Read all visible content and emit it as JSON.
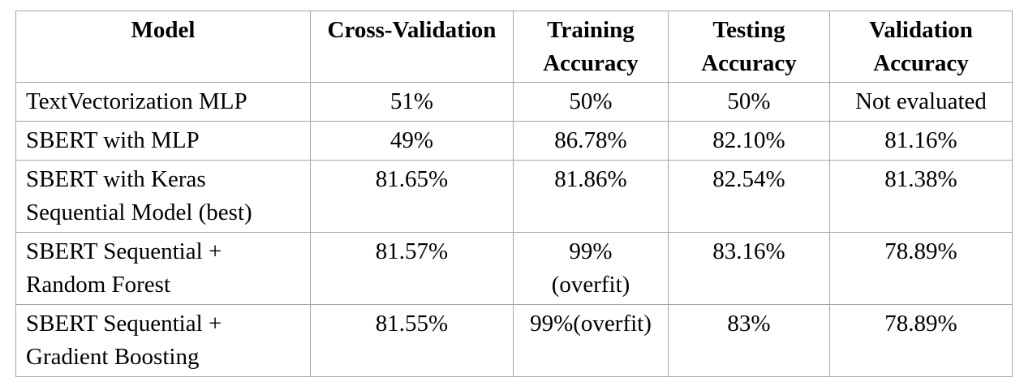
{
  "table": {
    "headers": [
      [
        "Model"
      ],
      [
        "Cross-Validation"
      ],
      [
        "Training",
        "Accuracy"
      ],
      [
        "Testing",
        "Accuracy"
      ],
      [
        "Validation",
        "Accuracy"
      ]
    ],
    "rows": [
      {
        "model": [
          "TextVectorization MLP"
        ],
        "cross_validation": [
          "51%"
        ],
        "training_accuracy": [
          "50%"
        ],
        "testing_accuracy": [
          "50%"
        ],
        "validation_accuracy": [
          "Not evaluated"
        ]
      },
      {
        "model": [
          "SBERT with MLP"
        ],
        "cross_validation": [
          "49%"
        ],
        "training_accuracy": [
          "86.78%"
        ],
        "testing_accuracy": [
          "82.10%"
        ],
        "validation_accuracy": [
          "81.16%"
        ]
      },
      {
        "model": [
          "SBERT with Keras",
          "Sequential Model (best)"
        ],
        "cross_validation": [
          "81.65%"
        ],
        "training_accuracy": [
          "81.86%"
        ],
        "testing_accuracy": [
          "82.54%"
        ],
        "validation_accuracy": [
          "81.38%"
        ]
      },
      {
        "model": [
          "SBERT Sequential +",
          "Random Forest"
        ],
        "cross_validation": [
          "81.57%"
        ],
        "training_accuracy": [
          "99%",
          "(overfit)"
        ],
        "testing_accuracy": [
          "83.16%"
        ],
        "validation_accuracy": [
          "78.89%"
        ]
      },
      {
        "model": [
          "SBERT Sequential +",
          "Gradient Boosting"
        ],
        "cross_validation": [
          "81.55%"
        ],
        "training_accuracy": [
          "99%(overfit)"
        ],
        "testing_accuracy": [
          "83%"
        ],
        "validation_accuracy": [
          "78.89%"
        ]
      }
    ]
  }
}
